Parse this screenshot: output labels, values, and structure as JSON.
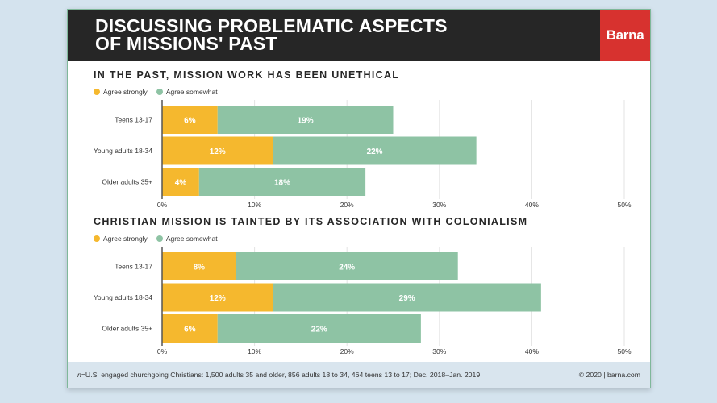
{
  "header": {
    "title": "DISCUSSING PROBLEMATIC ASPECTS\nOF MISSIONS' PAST",
    "logo_text": "Barna"
  },
  "colors": {
    "agree_strongly": "#f5b82e",
    "agree_somewhat": "#8ec3a4",
    "grid": "#e3e3e3",
    "axis": "#555555",
    "header_bg": "#262626",
    "logo_bg": "#d7322f"
  },
  "chart_data": [
    {
      "type": "bar",
      "orientation": "horizontal",
      "stacked": true,
      "title": "IN THE PAST, MISSION WORK HAS BEEN UNETHICAL",
      "categories": [
        "Teens 13-17",
        "Young adults 18-34",
        "Older adults 35+"
      ],
      "series": [
        {
          "name": "Agree strongly",
          "values": [
            6,
            12,
            4
          ],
          "labels": [
            "6%",
            "12%",
            "4%"
          ]
        },
        {
          "name": "Agree somewhat",
          "values": [
            19,
            22,
            18
          ],
          "labels": [
            "19%",
            "22%",
            "18%"
          ]
        }
      ],
      "xlim": [
        0,
        50
      ],
      "xticks": [
        "0%",
        "10%",
        "20%",
        "30%",
        "40%",
        "50%"
      ],
      "grid": true,
      "legend": "top-left"
    },
    {
      "type": "bar",
      "orientation": "horizontal",
      "stacked": true,
      "title": "CHRISTIAN MISSION IS TAINTED BY ITS ASSOCIATION WITH COLONIALISM",
      "categories": [
        "Teens 13-17",
        "Young adults 18-34",
        "Older adults 35+"
      ],
      "series": [
        {
          "name": "Agree strongly",
          "values": [
            8,
            12,
            6
          ],
          "labels": [
            "8%",
            "12%",
            "6%"
          ]
        },
        {
          "name": "Agree somewhat",
          "values": [
            24,
            29,
            22
          ],
          "labels": [
            "24%",
            "29%",
            "22%"
          ]
        }
      ],
      "xlim": [
        0,
        50
      ],
      "xticks": [
        "0%",
        "10%",
        "20%",
        "30%",
        "40%",
        "50%"
      ],
      "grid": true,
      "legend": "top-left"
    }
  ],
  "footer": {
    "n_label": "n",
    "note": "=U.S. engaged churchgoing Christians: 1,500 adults 35 and older, 856 adults 18 to 34, 464 teens 13 to 17; Dec. 2018–Jan. 2019",
    "copyright": "© 2020 | barna.com"
  }
}
